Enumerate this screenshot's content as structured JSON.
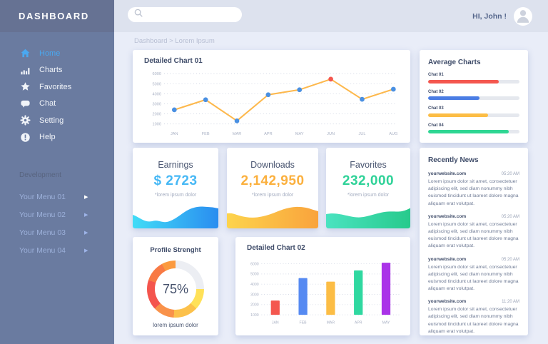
{
  "sidebar": {
    "title": "DASHBOARD",
    "items": [
      {
        "label": "Home",
        "icon": "home-icon",
        "active": true
      },
      {
        "label": "Charts",
        "icon": "charts-icon",
        "active": false
      },
      {
        "label": "Favorites",
        "icon": "star-icon",
        "active": false
      },
      {
        "label": "Chat",
        "icon": "chat-icon",
        "active": false
      },
      {
        "label": "Setting",
        "icon": "gear-icon",
        "active": false
      },
      {
        "label": "Help",
        "icon": "help-icon",
        "active": false
      }
    ],
    "section_label": "Development",
    "dev_items": [
      {
        "label": "Your Menu 01"
      },
      {
        "label": "Your Menu 02"
      },
      {
        "label": "Your Menu 03"
      },
      {
        "label": "Your Menu 04"
      }
    ]
  },
  "topbar": {
    "greeting": "HI, John !",
    "search_placeholder": ""
  },
  "breadcrumb": "Dashboard > Lorem Ipsum",
  "chart01": {
    "title": "Detailed Chart 01",
    "chart_data": {
      "type": "line",
      "categories": [
        "JAN",
        "FEB",
        "MAR",
        "APR",
        "MAY",
        "JUN",
        "JUL",
        "AUG"
      ],
      "values": [
        2400,
        3400,
        1300,
        3900,
        4400,
        5450,
        3450,
        4450
      ],
      "ylim": [
        1000,
        6000
      ],
      "ytick_step": 1000,
      "grid": true,
      "line_color": "#fdb84c",
      "marker_color": "#4a90e2",
      "highlight_index": 5,
      "highlight_color": "#f4574f"
    }
  },
  "average": {
    "title": "Average Charts",
    "bars": [
      {
        "label": "Chat 01",
        "value": 77,
        "color": "#f4574f"
      },
      {
        "label": "Chat 02",
        "value": 56,
        "color": "#4a7de4"
      },
      {
        "label": "Chat 03",
        "value": 66,
        "color": "#fcbd45"
      },
      {
        "label": "Chat 04",
        "value": 88,
        "color": "#2fd693"
      }
    ]
  },
  "stats": [
    {
      "title": "Earnings",
      "value": "$ 2723",
      "note": "*lorem ipsum dolor",
      "value_color": "#47b8f5",
      "wave_from": "#41dcf7",
      "wave_to": "#2a8df0"
    },
    {
      "title": "Downloads",
      "value": "2,142,950",
      "note": "*lorem ipsum dolor",
      "value_color": "#fbb03e",
      "wave_from": "#fdd44d",
      "wave_to": "#f9a33c"
    },
    {
      "title": "Favorites",
      "value": "232,000",
      "note": "*lorem ipsum dolor",
      "value_color": "#2fd298",
      "wave_from": "#4ae3c0",
      "wave_to": "#27ca8c"
    }
  ],
  "news": {
    "title": "Recently News",
    "items": [
      {
        "source": "yourwebsite.com",
        "time": "05:20 AM",
        "body": "Lorem ipsum dolor sit amet, consectetuer adipiscing elit, sed diam nonummy nibh euismod tincidunt ut laoreet dolore magna aliquam erat volutpat."
      },
      {
        "source": "yourwebsite.com",
        "time": "05:20 AM",
        "body": "Lorem ipsum dolor sit amet, consectetuer adipiscing elit, sed diam nonummy nibh euismod tincidunt ut laoreet dolore magna aliquam erat volutpat."
      },
      {
        "source": "yourwebsite.com",
        "time": "05:20 AM",
        "body": "Lorem ipsum dolor sit amet, consectetuer adipiscing elit, sed diam nonummy nibh euismod tincidunt ut laoreet dolore magna aliquam erat volutpat."
      },
      {
        "source": "yourwebsite.com",
        "time": "11:20 AM",
        "body": "Lorem ipsum dolor sit amet, consectetuer adipiscing elit, sed diam nonummy nibh euismod tincidunt ut laoreet dolore magna aliquam erat volutpat."
      }
    ]
  },
  "profile": {
    "title": "Profile Strenght",
    "percent": "75%",
    "note": "lorem ipsum dolor"
  },
  "chart02": {
    "title": "Detailed Chart 02",
    "chart_data": {
      "type": "bar",
      "categories": [
        "JAN",
        "FEB",
        "MAR",
        "APR",
        "MAY"
      ],
      "values": [
        2400,
        4600,
        4250,
        5350,
        6100
      ],
      "baseline": 1000,
      "ylim": [
        1000,
        6000
      ],
      "ytick_step": 1000,
      "grid": true,
      "colors": [
        "#f4574f",
        "#568af2",
        "#fcbd45",
        "#2fd8a0",
        "#aa33e8"
      ]
    }
  }
}
